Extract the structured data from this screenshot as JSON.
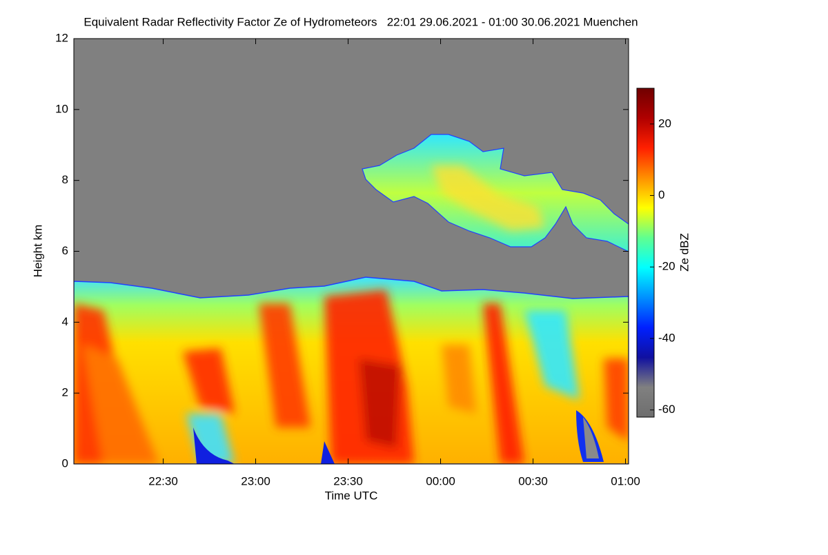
{
  "chart_data": {
    "type": "heatmap",
    "title": "Equivalent Radar Reflectivity Factor Ze of Hydrometeors   22:01 29.06.2021 - 01:00 30.06.2021 Muenchen",
    "x_label": "Time UTC",
    "y_label": "Height km",
    "xlim": [
      1,
      181
    ],
    "xticks": [
      {
        "value": 30,
        "label": "22:30"
      },
      {
        "value": 60,
        "label": "23:00"
      },
      {
        "value": 90,
        "label": "23:30"
      },
      {
        "value": 120,
        "label": "00:00"
      },
      {
        "value": 150,
        "label": "00:30"
      },
      {
        "value": 180,
        "label": "01:00"
      }
    ],
    "ylim": [
      0,
      12
    ],
    "yticks": [
      0,
      2,
      4,
      6,
      8,
      10,
      12
    ],
    "colorbar": {
      "label": "Ze dBZ",
      "lim": [
        -62,
        30
      ],
      "ticks": [
        -60,
        -40,
        -20,
        0,
        20
      ],
      "colors": [
        "#6e6e6e",
        "#808080",
        "#1010a0",
        "#0020ff",
        "#0090ff",
        "#00ffff",
        "#60ff90",
        "#ffff00",
        "#ff9000",
        "#ff2000",
        "#b00000",
        "#700000"
      ]
    }
  }
}
